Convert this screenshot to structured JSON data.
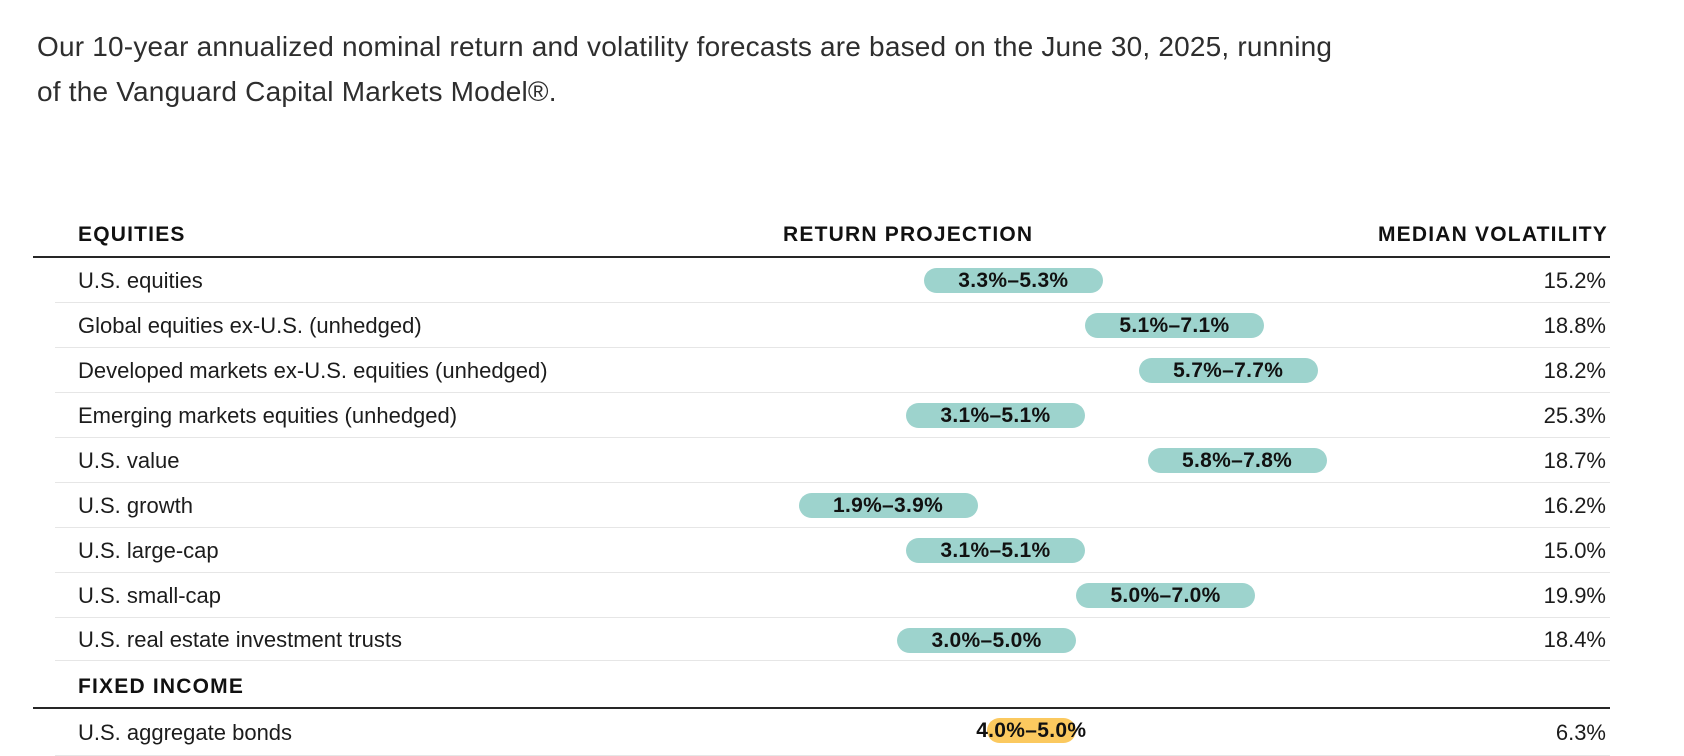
{
  "title": {
    "line1": "Our 10-year annualized nominal return and volatility forecasts are based on the June 30, 2025, running",
    "line2": "of the Vanguard Capital Markets Model®."
  },
  "table": {
    "col_return": "RETURN PROJECTION",
    "col_volatility": "MEDIAN VOLATILITY",
    "sections": [
      {
        "label": "EQUITIES",
        "rows": [
          {
            "label": "U.S. equities",
            "range_label": "3.3%–5.3%",
            "low": 3.3,
            "high": 5.3,
            "volatility": "15.2%",
            "color": "teal"
          },
          {
            "label": "Global equities ex-U.S. (unhedged)",
            "range_label": "5.1%–7.1%",
            "low": 5.1,
            "high": 7.1,
            "volatility": "18.8%",
            "color": "teal"
          },
          {
            "label": "Developed markets ex-U.S. equities (unhedged)",
            "range_label": "5.7%–7.7%",
            "low": 5.7,
            "high": 7.7,
            "volatility": "18.2%",
            "color": "teal"
          },
          {
            "label": "Emerging markets equities (unhedged)",
            "range_label": "3.1%–5.1%",
            "low": 3.1,
            "high": 5.1,
            "volatility": "25.3%",
            "color": "teal"
          },
          {
            "label": "U.S. value",
            "range_label": "5.8%–7.8%",
            "low": 5.8,
            "high": 7.8,
            "volatility": "18.7%",
            "color": "teal"
          },
          {
            "label": "U.S. growth",
            "range_label": "1.9%–3.9%",
            "low": 1.9,
            "high": 3.9,
            "volatility": "16.2%",
            "color": "teal"
          },
          {
            "label": "U.S. large-cap",
            "range_label": "3.1%–5.1%",
            "low": 3.1,
            "high": 5.1,
            "volatility": "15.0%",
            "color": "teal"
          },
          {
            "label": "U.S. small-cap",
            "range_label": "5.0%–7.0%",
            "low": 5.0,
            "high": 7.0,
            "volatility": "19.9%",
            "color": "teal"
          },
          {
            "label": "U.S. real estate investment trusts",
            "range_label": "3.0%–5.0%",
            "low": 3.0,
            "high": 5.0,
            "volatility": "18.4%",
            "color": "teal"
          }
        ]
      },
      {
        "label": "FIXED INCOME",
        "rows": [
          {
            "label": "U.S. aggregate bonds",
            "range_label": "4.0%–5.0%",
            "low": 4.0,
            "high": 5.0,
            "volatility": "6.3%",
            "color": "yellow"
          }
        ]
      }
    ]
  },
  "colors": {
    "teal": "#9DD3CD",
    "yellow": "#FBC95F"
  },
  "chart_data": {
    "type": "bar",
    "subtype": "floating-range-bars-in-table",
    "title": "Our 10-year annualized nominal return and volatility forecasts are based on the June 30, 2025, running of the Vanguard Capital Markets Model®.",
    "columns": [
      "EQUITIES / FIXED INCOME",
      "RETURN PROJECTION",
      "MEDIAN VOLATILITY"
    ],
    "categories": [
      "U.S. equities",
      "Global equities ex-U.S. (unhedged)",
      "Developed markets ex-U.S. equities (unhedged)",
      "Emerging markets equities (unhedged)",
      "U.S. value",
      "U.S. growth",
      "U.S. large-cap",
      "U.S. small-cap",
      "U.S. real estate investment trusts",
      "U.S. aggregate bonds"
    ],
    "groups": {
      "EQUITIES": [
        "U.S. equities",
        "Global equities ex-U.S. (unhedged)",
        "Developed markets ex-U.S. equities (unhedged)",
        "Emerging markets equities (unhedged)",
        "U.S. value",
        "U.S. growth",
        "U.S. large-cap",
        "U.S. small-cap",
        "U.S. real estate investment trusts"
      ],
      "FIXED INCOME": [
        "U.S. aggregate bonds"
      ]
    },
    "series": [
      {
        "name": "Return projection low (%)",
        "values": [
          3.3,
          5.1,
          5.7,
          3.1,
          5.8,
          1.9,
          3.1,
          5.0,
          3.0,
          4.0
        ]
      },
      {
        "name": "Return projection high (%)",
        "values": [
          5.3,
          7.1,
          7.7,
          5.1,
          7.8,
          3.9,
          5.1,
          7.0,
          5.0,
          5.0
        ]
      },
      {
        "name": "Median volatility (%)",
        "values": [
          15.2,
          18.8,
          18.2,
          25.3,
          18.7,
          16.2,
          15.0,
          19.9,
          18.4,
          6.3
        ]
      }
    ],
    "xlim": [
      1.9,
      7.8
    ],
    "x_unit": "%",
    "grid": false,
    "legend": false
  }
}
